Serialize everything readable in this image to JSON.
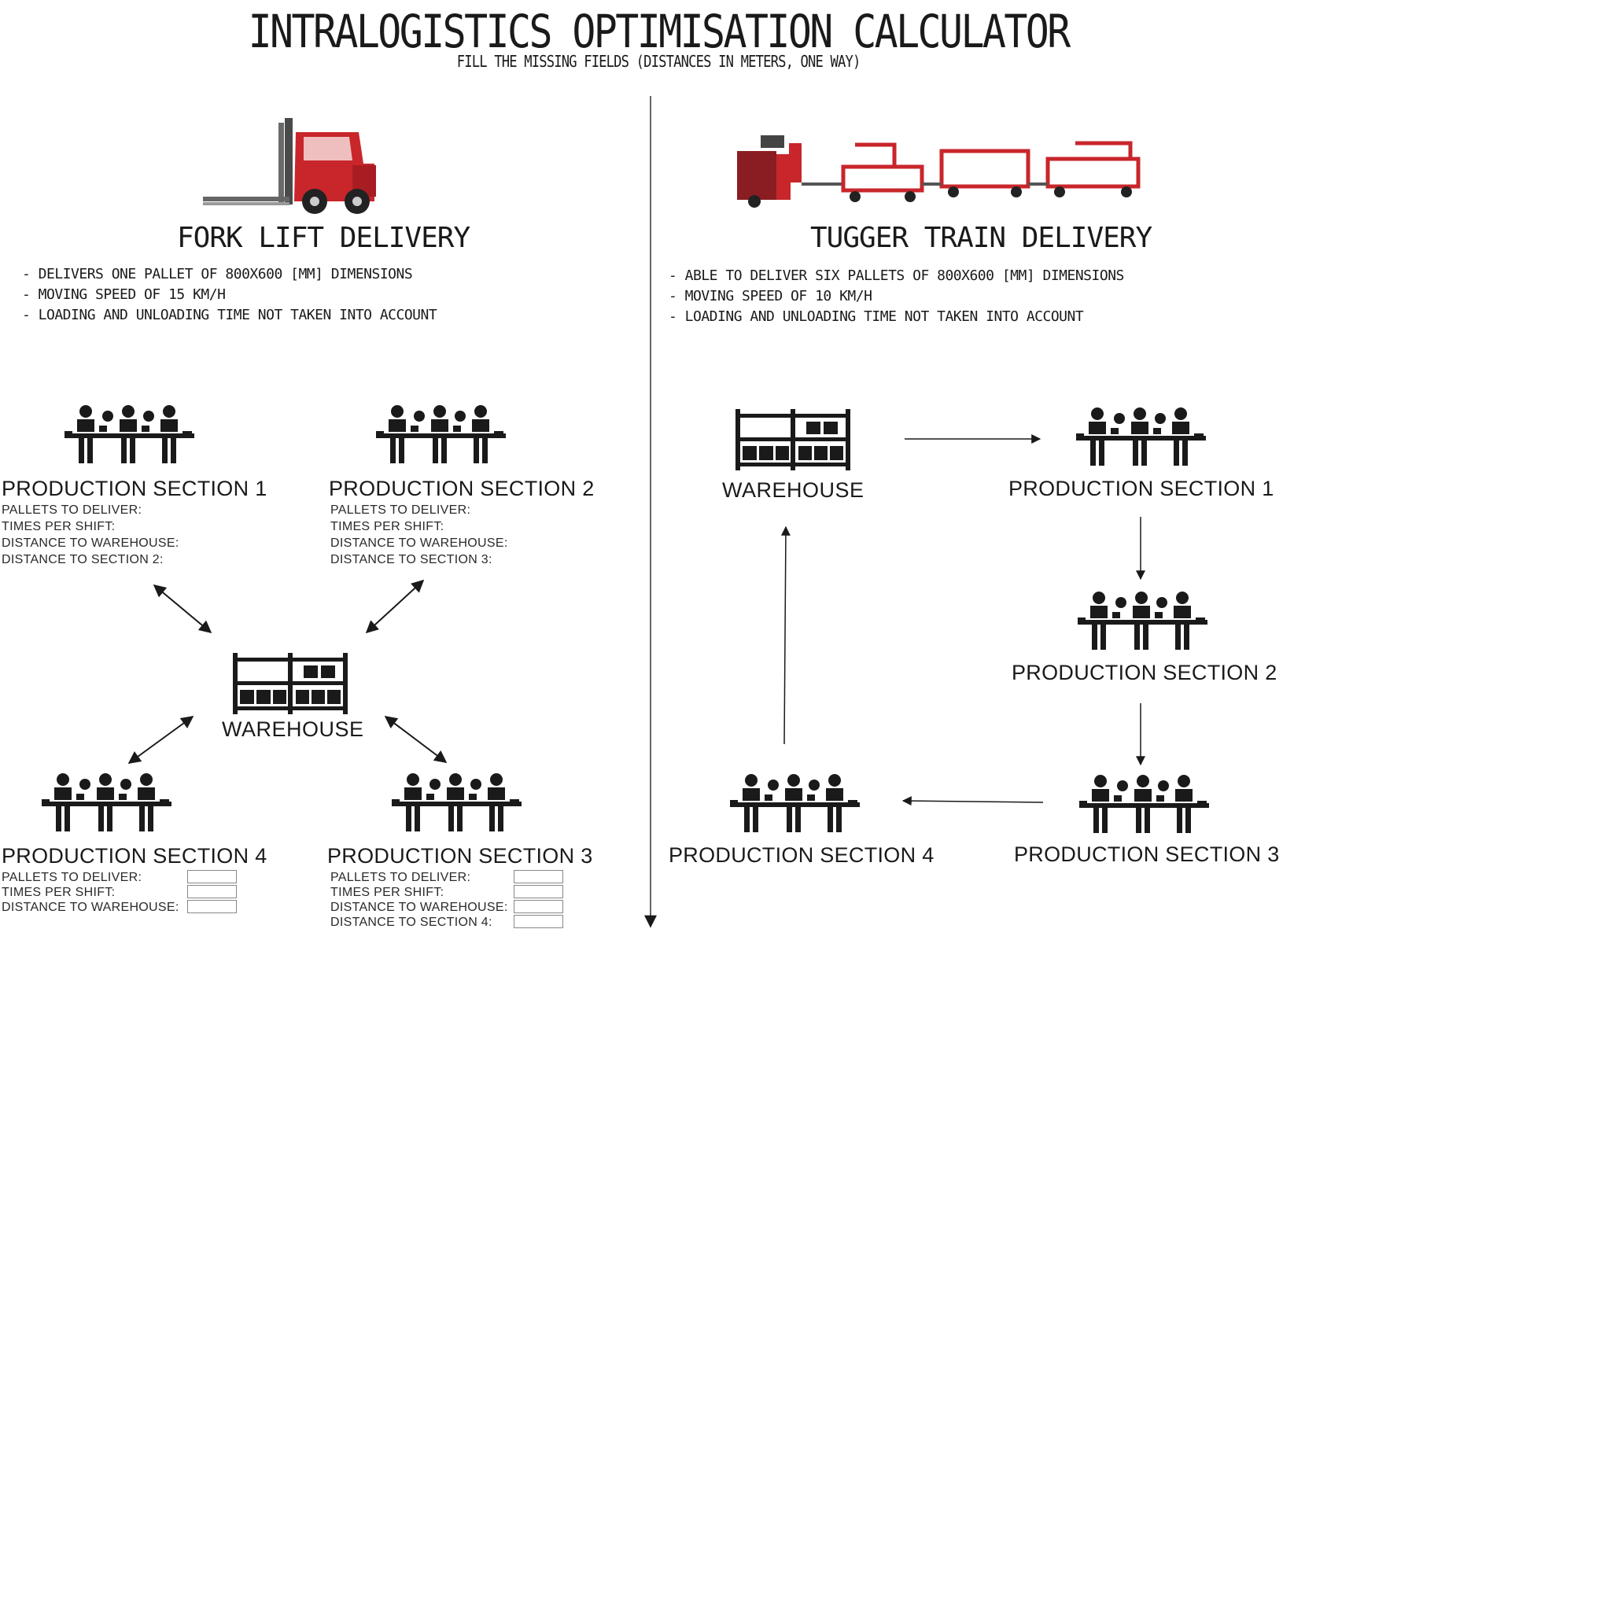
{
  "header": {
    "title": "INTRALOGISTICS OPTIMISATION CALCULATOR",
    "subtitle": "FILL THE MISSING FIELDS (DISTANCES IN METERS, ONE WAY)"
  },
  "forklift": {
    "title": "FORK LIFT DELIVERY",
    "bullets": [
      "- DELIVERS ONE PALLET OF 800X600 [MM] DIMENSIONS",
      "- MOVING SPEED OF 15 KM/H",
      "- LOADING AND UNLOADING TIME  NOT TAKEN INTO ACCOUNT"
    ],
    "sections": {
      "s1": {
        "name": "PRODUCTION SECTION 1",
        "fields": [
          "PALLETS TO DELIVER:",
          "TIMES PER SHIFT:",
          "DISTANCE TO WAREHOUSE:",
          "DISTANCE TO SECTION 2:"
        ]
      },
      "s2": {
        "name": "PRODUCTION SECTION 2",
        "fields": [
          "PALLETS TO DELIVER:",
          "TIMES PER SHIFT:",
          "DISTANCE TO WAREHOUSE:",
          "DISTANCE TO SECTION 3:"
        ]
      },
      "s3": {
        "name": "PRODUCTION SECTION 3",
        "fields": [
          "PALLETS TO DELIVER:",
          "TIMES PER SHIFT:",
          "DISTANCE TO WAREHOUSE:",
          "DISTANCE TO SECTION 4:"
        ]
      },
      "s4": {
        "name": "PRODUCTION SECTION 4",
        "fields": [
          "PALLETS TO DELIVER:",
          "TIMES PER SHIFT:",
          "DISTANCE TO WAREHOUSE:"
        ]
      }
    },
    "warehouse": "WAREHOUSE"
  },
  "tugger": {
    "title": "TUGGER TRAIN DELIVERY",
    "bullets": [
      "- ABLE TO DELIVER SIX PALLETS OF 800X600 [MM] DIMENSIONS",
      "- MOVING SPEED OF 10 KM/H",
      "- LOADING AND UNLOADING TIME  NOT TAKEN INTO ACCOUNT"
    ],
    "warehouse": "WAREHOUSE",
    "sections": {
      "s1": "PRODUCTION SECTION 1",
      "s2": "PRODUCTION SECTION 2",
      "s3": "PRODUCTION SECTION 3",
      "s4": "PRODUCTION SECTION 4"
    }
  },
  "colors": {
    "vehicle_red": "#c8262b",
    "icon": "#1a1a1a"
  }
}
